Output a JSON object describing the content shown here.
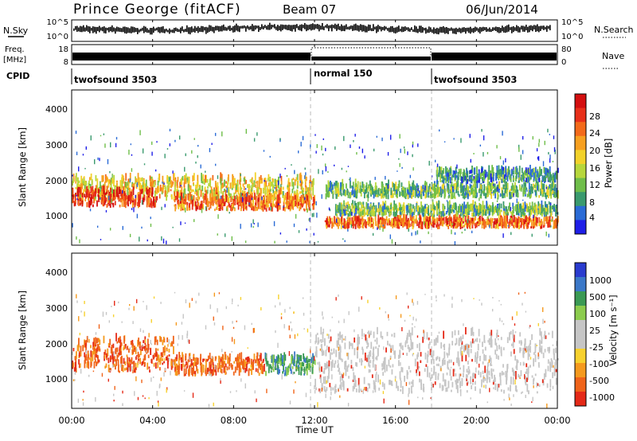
{
  "header": {
    "title": "Prince George (fitACF)",
    "beam": "Beam 07",
    "date": "06/Jun/2014"
  },
  "left_labels": {
    "nsky": "N.Sky",
    "freq": "Freq.",
    "freq_unit": "[MHz]",
    "cpid": "CPID"
  },
  "right_labels": {
    "nsearch": "N.Search",
    "nave": "Nave"
  },
  "top_panel": {
    "left_ticks": [
      "10^5",
      "10^0"
    ],
    "right_ticks": [
      "10^5",
      "10^0"
    ]
  },
  "freq_panel": {
    "left_ticks": [
      "18",
      "8"
    ],
    "right_ticks": [
      "80",
      "0"
    ]
  },
  "cpid_segments": [
    {
      "label": "twofsound 3503",
      "start_hour": 0
    },
    {
      "label": "normal 150",
      "start_hour": 12
    },
    {
      "label": "twofsound 3503",
      "start_hour": 18
    }
  ],
  "x_axis": {
    "label": "Time UT",
    "ticks": [
      "00:00",
      "04:00",
      "08:00",
      "12:00",
      "16:00",
      "20:00",
      "00:00"
    ],
    "tick_hours": [
      0,
      4,
      8,
      12,
      16,
      20,
      24
    ],
    "range_hours": [
      0,
      24
    ]
  },
  "power_panel": {
    "ylabel": "Slant Range [km]",
    "yticks": [
      "1000",
      "2000",
      "3000",
      "4000"
    ],
    "colorbar_label": "Power [dB]",
    "colorbar_ticks": [
      "4",
      "8",
      "12",
      "16",
      "20",
      "24",
      "28"
    ],
    "colors": [
      "#1f1fe8",
      "#2a6bd6",
      "#3a9a6e",
      "#6fbe4a",
      "#b7d73c",
      "#f2d22a",
      "#f7a020",
      "#f36a1a",
      "#e8301a",
      "#d40f10"
    ]
  },
  "velocity_panel": {
    "ylabel": "Slant Range [km]",
    "yticks": [
      "1000",
      "2000",
      "3000",
      "4000"
    ],
    "colorbar_label": "Velocity [m s⁻¹]",
    "colorbar_ticks": [
      "1000",
      "500",
      "100",
      "25",
      "-25",
      "-100",
      "-500",
      "-1000"
    ],
    "colors": [
      "#2a3ccf",
      "#3b78c8",
      "#3b9a55",
      "#8ccc4e",
      "#c6c6c6",
      "#c6c6c6",
      "#f7d12e",
      "#f59a1e",
      "#f0641a",
      "#e52a18"
    ]
  },
  "chart_data": {
    "type": "heatmap",
    "x_unit": "hours UT",
    "y_unit": "km",
    "xlim": [
      0,
      24
    ],
    "ylim": [
      200,
      4600
    ],
    "mode_boundaries_hours": [
      12,
      18
    ],
    "power_bands": [
      {
        "x": [
          0,
          12
        ],
        "y": [
          1450,
          2050
        ],
        "power_db": 18
      },
      {
        "x": [
          0,
          4.2
        ],
        "y": [
          1250,
          1700
        ],
        "power_db": 26
      },
      {
        "x": [
          5,
          12
        ],
        "y": [
          1150,
          1500
        ],
        "power_db": 24
      },
      {
        "x": [
          12.5,
          24
        ],
        "y": [
          650,
          900
        ],
        "power_db": 24
      },
      {
        "x": [
          13,
          24
        ],
        "y": [
          1000,
          1250
        ],
        "power_db": 12
      },
      {
        "x": [
          12.5,
          24
        ],
        "y": [
          1500,
          1850
        ],
        "power_db": 12
      },
      {
        "x": [
          18,
          24
        ],
        "y": [
          1950,
          2250
        ],
        "power_db": 8
      }
    ],
    "velocity_bands": [
      {
        "x": [
          0,
          5
        ],
        "y": [
          1200,
          2100
        ],
        "velocity": -500
      },
      {
        "x": [
          5,
          9.5
        ],
        "y": [
          1100,
          1600
        ],
        "velocity": -500
      },
      {
        "x": [
          9.5,
          12
        ],
        "y": [
          1100,
          1600
        ],
        "velocity": 100
      },
      {
        "x": [
          12,
          24
        ],
        "y": [
          600,
          2300
        ],
        "velocity": 0
      }
    ]
  }
}
